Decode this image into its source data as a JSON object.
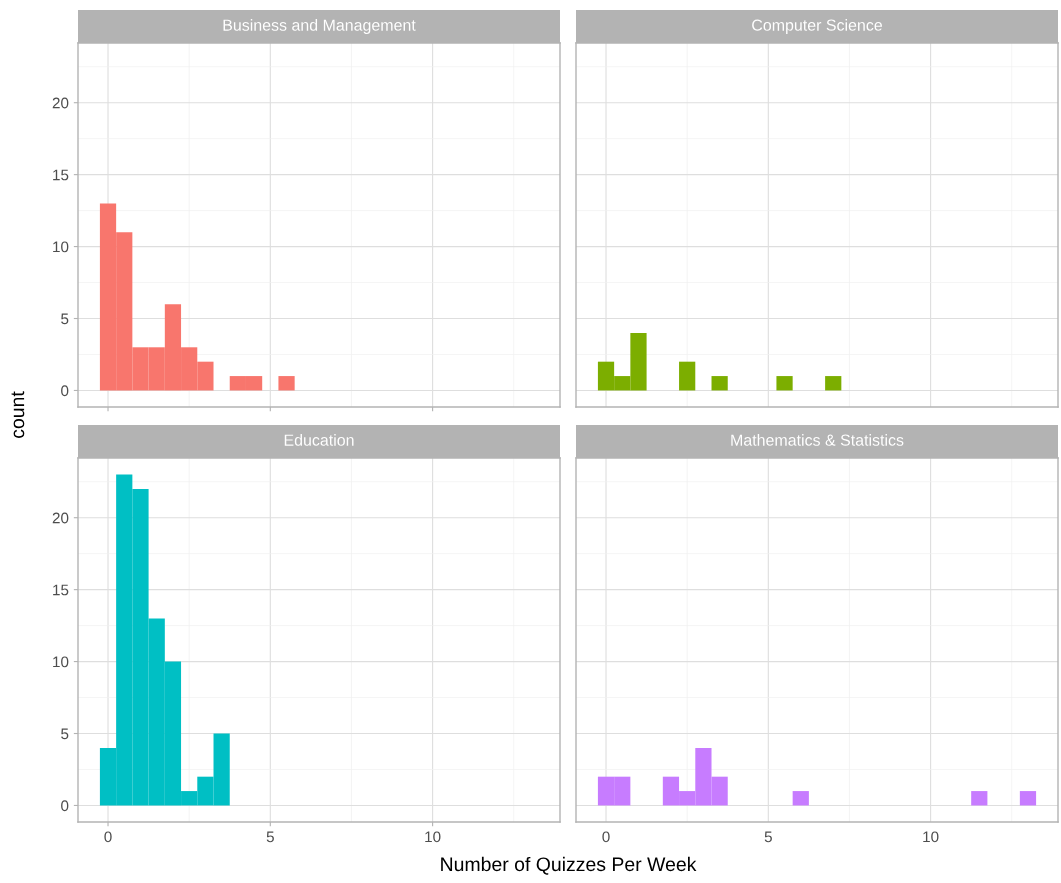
{
  "chart_data": [
    {
      "type": "histogram",
      "title": "Business and Management",
      "ylabel": "count",
      "color": "#f8766d",
      "bins": [
        -0.25,
        0.25,
        0.75,
        1.25,
        1.75,
        2.25,
        2.75,
        3.25,
        3.75,
        4.25,
        4.75,
        5.25,
        5.75
      ],
      "values": [
        13,
        11,
        3,
        3,
        6,
        3,
        2,
        0,
        1,
        1,
        0,
        1
      ],
      "xlim": [
        -0.925,
        13.925
      ],
      "ylim": [
        -1.15,
        24.15
      ],
      "xticks": [
        0,
        {
          "value": 2.5,
          "label": null
        },
        5,
        {
          "value": 7.5,
          "label": null
        },
        10,
        {
          "value": 12.5,
          "label": null
        }
      ],
      "yticks": [
        0,
        {
          "value": 2.5,
          "label": null
        },
        5,
        {
          "value": 7.5,
          "label": null
        },
        10,
        {
          "value": 12.5,
          "label": null
        },
        15,
        {
          "value": 17.5,
          "label": null
        },
        20,
        {
          "value": 22.5,
          "label": null
        }
      ],
      "grid": true,
      "tick_labels": "y"
    },
    {
      "type": "histogram",
      "title": "Computer Science",
      "color": "#7cae00",
      "bins": [
        -0.25,
        0.25,
        0.75,
        1.25,
        1.75,
        2.25,
        2.75,
        3.25,
        3.75,
        4.25,
        4.75,
        5.25,
        5.75,
        6.25,
        6.75,
        7.25
      ],
      "values": [
        2,
        1,
        4,
        0,
        0,
        2,
        0,
        1,
        0,
        0,
        0,
        1,
        0,
        0,
        1
      ],
      "xlim": [
        -0.925,
        13.925
      ],
      "ylim": [
        -1.15,
        24.15
      ],
      "xticks": [
        0,
        {
          "value": 2.5,
          "label": null
        },
        5,
        {
          "value": 7.5,
          "label": null
        },
        10,
        {
          "value": 12.5,
          "label": null
        }
      ],
      "yticks": [
        0,
        {
          "value": 2.5,
          "label": null
        },
        5,
        {
          "value": 7.5,
          "label": null
        },
        10,
        {
          "value": 12.5,
          "label": null
        },
        15,
        {
          "value": 17.5,
          "label": null
        },
        20,
        {
          "value": 22.5,
          "label": null
        }
      ],
      "grid": true,
      "tick_labels": false
    },
    {
      "type": "histogram",
      "title": "Education",
      "xlabel": "Number of Quizzes Per Week",
      "color": "#00bfc4",
      "bins": [
        -0.25,
        0.25,
        0.75,
        1.25,
        1.75,
        2.25,
        2.75,
        3.25,
        3.75
      ],
      "values": [
        4,
        23,
        22,
        13,
        10,
        1,
        2,
        5
      ],
      "xlim": [
        -0.925,
        13.925
      ],
      "ylim": [
        -1.15,
        24.15
      ],
      "xticks": [
        0,
        {
          "value": 2.5,
          "label": null
        },
        5,
        {
          "value": 7.5,
          "label": null
        },
        10,
        {
          "value": 12.5,
          "label": null
        }
      ],
      "yticks": [
        0,
        {
          "value": 2.5,
          "label": null
        },
        5,
        {
          "value": 7.5,
          "label": null
        },
        10,
        {
          "value": 12.5,
          "label": null
        },
        15,
        {
          "value": 17.5,
          "label": null
        },
        20,
        {
          "value": 22.5,
          "label": null
        }
      ],
      "grid": true
    },
    {
      "type": "histogram",
      "title": "Mathematics & Statistics",
      "color": "#c77cff",
      "bins": [
        -0.25,
        0.25,
        0.75,
        1.25,
        1.75,
        2.25,
        2.75,
        3.25,
        3.75,
        4.25,
        4.75,
        5.25,
        5.75,
        6.25,
        6.75,
        7.25,
        7.75,
        8.25,
        8.75,
        9.25,
        9.75,
        10.25,
        10.75,
        11.25,
        11.75,
        12.25,
        12.75,
        13.25
      ],
      "values": [
        2,
        2,
        0,
        0,
        2,
        1,
        4,
        2,
        0,
        0,
        0,
        0,
        1,
        0,
        0,
        0,
        0,
        0,
        0,
        0,
        0,
        0,
        0,
        1,
        0,
        0,
        1
      ],
      "xlim": [
        -0.925,
        13.925
      ],
      "ylim": [
        -1.15,
        24.15
      ],
      "xticks": [
        0,
        {
          "value": 2.5,
          "label": null
        },
        5,
        {
          "value": 7.5,
          "label": null
        },
        10,
        {
          "value": 12.5,
          "label": null
        }
      ],
      "yticks": [
        0,
        {
          "value": 2.5,
          "label": null
        },
        5,
        {
          "value": 7.5,
          "label": null
        },
        10,
        {
          "value": 12.5,
          "label": null
        },
        15,
        {
          "value": 17.5,
          "label": null
        },
        20,
        {
          "value": 22.5,
          "label": null
        }
      ],
      "grid": true,
      "tick_labels": "x"
    }
  ]
}
